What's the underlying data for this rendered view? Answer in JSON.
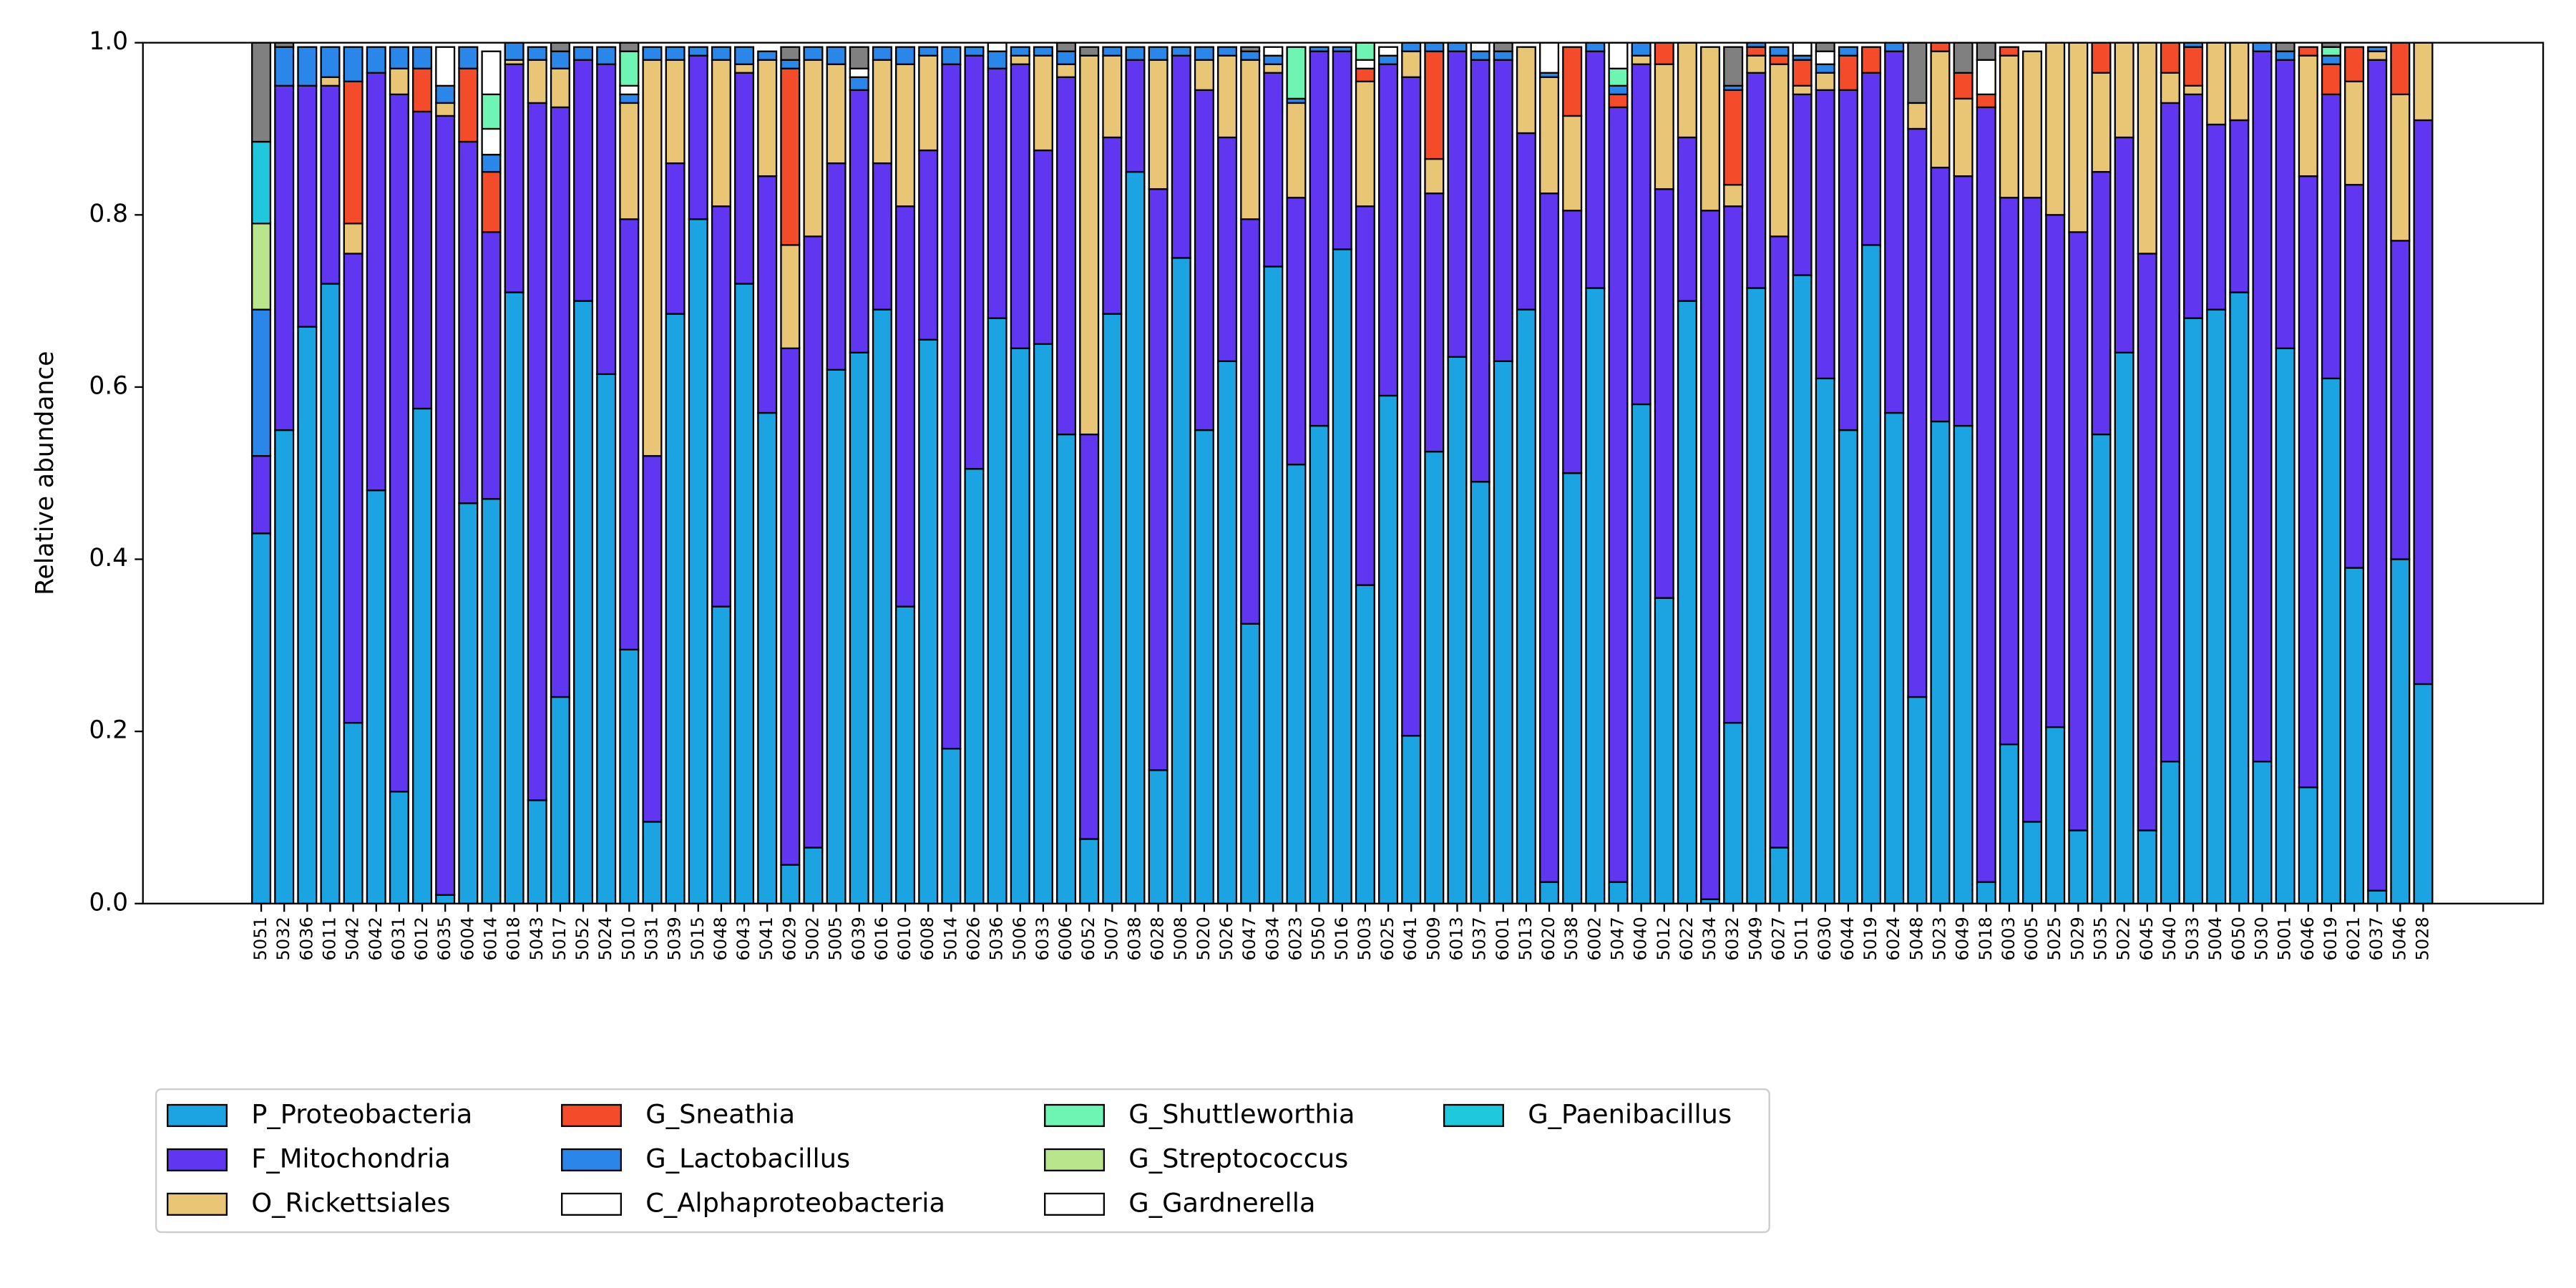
{
  "chart_data": {
    "type": "bar",
    "stacked": true,
    "grid": false,
    "legend": "lower left",
    "ylabel": "Relative abundance",
    "ylim": [
      0,
      1
    ],
    "yticks": [
      {
        "value": 0,
        "label": "0.0"
      },
      0.2,
      0.4,
      0.6,
      0.8,
      {
        "value": 1,
        "label": "1.0"
      }
    ],
    "categories": [
      "5051",
      "5032",
      "6036",
      "6011",
      "5042",
      "6042",
      "6031",
      "6012",
      "6035",
      "6004",
      "6014",
      "6018",
      "5043",
      "5017",
      "5052",
      "5024",
      "5010",
      "5031",
      "5039",
      "5015",
      "6048",
      "6043",
      "5041",
      "6029",
      "5002",
      "5005",
      "6039",
      "6016",
      "6010",
      "6008",
      "5014",
      "6026",
      "5036",
      "5006",
      "6033",
      "6006",
      "6052",
      "5007",
      "6038",
      "6028",
      "5008",
      "5020",
      "5026",
      "6047",
      "6034",
      "6023",
      "5050",
      "5016",
      "5003",
      "6025",
      "6041",
      "5009",
      "6013",
      "5037",
      "6001",
      "5013",
      "6020",
      "5038",
      "6002",
      "5047",
      "6040",
      "5012",
      "6022",
      "5034",
      "6032",
      "5049",
      "6027",
      "5011",
      "6030",
      "6044",
      "5019",
      "6024",
      "5048",
      "5023",
      "6049",
      "5018",
      "6003",
      "6005",
      "5025",
      "5029",
      "5035",
      "5022",
      "6045",
      "5040",
      "5033",
      "5004",
      "6050",
      "5030",
      "5001",
      "6046",
      "6019",
      "6021",
      "6037",
      "5046",
      "5028"
    ],
    "series": [
      {
        "name": "P_Proteobacteria",
        "color": "#1ba3e2",
        "values": [
          0.43,
          0.55,
          0.67,
          0.72,
          0.21,
          0.48,
          0.13,
          0.575,
          0.01,
          0.465,
          0.47,
          0.71,
          0.12,
          0.24,
          0.7,
          0.615,
          0.295,
          0.095,
          0.685,
          0.795,
          0.345,
          0.72,
          0.57,
          0.045,
          0.065,
          0.62,
          0.64,
          0.69,
          0.345,
          0.655,
          0.18,
          0.505,
          0.68,
          0.645,
          0.65,
          0.545,
          0.075,
          0.685,
          0.85,
          0.155,
          0.75,
          0.55,
          0.63,
          0.325,
          0.74,
          0.51,
          0.555,
          0.76,
          0.37,
          0.59,
          0.195,
          0.525,
          0.635,
          0.49,
          0.63,
          0.69,
          0.025,
          0.5,
          0.715,
          0.025,
          0.58,
          0.355,
          0.7,
          0.005,
          0.21,
          0.715,
          0.065,
          0.73,
          0.61,
          0.55,
          0.765,
          0.57,
          0.24,
          0.56,
          0.555,
          0.025,
          0.185,
          0.095,
          0.205,
          0.085,
          0.545,
          0.64,
          0.085,
          0.165,
          0.68,
          0.69,
          0.71,
          0.165,
          0.645,
          0.135,
          0.61,
          0.39,
          0.015,
          0.4,
          0.255
        ]
      },
      {
        "name": "F_Mitochondria",
        "color": "#6136f0",
        "values": [
          0.09,
          0.4,
          0.28,
          0.23,
          0.545,
          0.485,
          0.81,
          0.345,
          0.905,
          0.42,
          0.31,
          0.265,
          0.81,
          0.685,
          0.28,
          0.36,
          0.5,
          0.425,
          0.175,
          0.19,
          0.465,
          0.245,
          0.275,
          0.6,
          0.71,
          0.24,
          0.305,
          0.17,
          0.465,
          0.22,
          0.795,
          0.48,
          0.29,
          0.33,
          0.225,
          0.415,
          0.47,
          0.205,
          0.13,
          0.675,
          0.235,
          0.395,
          0.26,
          0.47,
          0.225,
          0.31,
          0.435,
          0.23,
          0.44,
          0.385,
          0.765,
          0.3,
          0.355,
          0.49,
          0.35,
          0.205,
          0.8,
          0.305,
          0.275,
          0.9,
          0.395,
          0.475,
          0.19,
          0.8,
          0.6,
          0.25,
          0.71,
          0.21,
          0.335,
          0.395,
          0.2,
          0.42,
          0.66,
          0.295,
          0.29,
          0.9,
          0.635,
          0.725,
          0.595,
          0.695,
          0.305,
          0.25,
          0.67,
          0.765,
          0.26,
          0.215,
          0.2,
          0.825,
          0.335,
          0.71,
          0.33,
          0.445,
          0.965,
          0.37,
          0.655
        ]
      },
      {
        "name": "O_Rickettsiales",
        "color": "#e9c675",
        "values": [
          0,
          0,
          0,
          0.01,
          0.035,
          0,
          0.03,
          0,
          0.015,
          0,
          0,
          0.005,
          0.05,
          0.045,
          0,
          0,
          0.135,
          0.46,
          0.12,
          0,
          0.17,
          0.01,
          0.135,
          0.12,
          0.205,
          0.115,
          0,
          0.12,
          0.165,
          0.11,
          0,
          0,
          0,
          0.01,
          0.11,
          0.015,
          0.44,
          0.095,
          0,
          0.15,
          0,
          0.035,
          0.095,
          0.185,
          0.01,
          0.11,
          0,
          0,
          0.145,
          0,
          0.03,
          0.04,
          0,
          0,
          0,
          0.1,
          0.135,
          0.11,
          0,
          0,
          0.01,
          0.145,
          0.11,
          0.19,
          0.025,
          0.02,
          0.2,
          0.01,
          0.02,
          0,
          0,
          0,
          0.03,
          0.135,
          0.09,
          0,
          0.165,
          0.17,
          0.2,
          0.22,
          0.115,
          0.11,
          0.245,
          0.035,
          0.01,
          0.095,
          0.09,
          0,
          0,
          0.14,
          0,
          0.12,
          0.01,
          0.17,
          0.09
        ]
      },
      {
        "name": "G_Sneathia",
        "color": "#f44b2b",
        "values": [
          0,
          0,
          0,
          0,
          0.165,
          0,
          0,
          0.05,
          0,
          0.085,
          0.07,
          0,
          0,
          0,
          0,
          0,
          0,
          0,
          0,
          0,
          0,
          0,
          0,
          0.205,
          0,
          0,
          0,
          0,
          0,
          0,
          0,
          0,
          0,
          0,
          0,
          0,
          0,
          0,
          0,
          0,
          0,
          0,
          0,
          0,
          0,
          0,
          0,
          0,
          0.015,
          0,
          0,
          0.125,
          0,
          0,
          0,
          0,
          0,
          0.08,
          0,
          0.015,
          0,
          0.025,
          0,
          0,
          0.11,
          0.01,
          0.01,
          0.03,
          0,
          0.04,
          0.03,
          0,
          0,
          0.01,
          0.03,
          0.015,
          0.01,
          0,
          0,
          0,
          0.035,
          0,
          0,
          0.035,
          0.045,
          0,
          0,
          0,
          0,
          0.01,
          0.035,
          0.04,
          0,
          0.06,
          0
        ]
      },
      {
        "name": "G_Lactobacillus",
        "color": "#2b86e9",
        "values": [
          0.17,
          0.045,
          0.045,
          0.035,
          0.04,
          0.03,
          0.025,
          0.025,
          0.02,
          0.025,
          0.02,
          0.02,
          0.015,
          0.02,
          0.015,
          0.02,
          0.01,
          0.015,
          0.015,
          0.01,
          0.015,
          0.02,
          0.01,
          0.01,
          0.015,
          0.02,
          0.015,
          0.015,
          0.02,
          0.01,
          0.02,
          0.01,
          0.02,
          0.01,
          0.01,
          0.015,
          0,
          0.01,
          0.015,
          0.015,
          0.01,
          0.015,
          0.01,
          0.01,
          0.01,
          0.005,
          0.005,
          0.005,
          0,
          0.01,
          0.01,
          0.01,
          0.01,
          0.01,
          0.01,
          0,
          0.005,
          0,
          0.01,
          0.01,
          0.015,
          0,
          0,
          0,
          0.005,
          0.005,
          0.01,
          0.005,
          0.01,
          0.01,
          0,
          0.01,
          0,
          0,
          0,
          0,
          0,
          0,
          0,
          0,
          0,
          0,
          0,
          0,
          0.005,
          0,
          0,
          0.01,
          0.01,
          0,
          0.01,
          0,
          0.005,
          0,
          0
        ]
      },
      {
        "name": "C_Alphaproteobacteria",
        "color": "#ffffff",
        "values": [
          0,
          0,
          0,
          0,
          0,
          0,
          0,
          0,
          0,
          0,
          0.03,
          0,
          0,
          0,
          0,
          0,
          0.01,
          0,
          0,
          0,
          0,
          0,
          0,
          0,
          0,
          0,
          0.01,
          0,
          0,
          0,
          0,
          0,
          0.01,
          0,
          0,
          0,
          0,
          0,
          0,
          0,
          0,
          0,
          0,
          0,
          0.01,
          0,
          0,
          0,
          0.01,
          0.01,
          0,
          0,
          0,
          0,
          0,
          0,
          0,
          0,
          0,
          0,
          0,
          0,
          0,
          0,
          0,
          0,
          0,
          0.015,
          0,
          0,
          0,
          0,
          0,
          0,
          0,
          0,
          0,
          0,
          0,
          0,
          0,
          0,
          0,
          0,
          0,
          0,
          0,
          0,
          0,
          0,
          0,
          0,
          0,
          0,
          0
        ]
      },
      {
        "name": "G_Shuttleworthia",
        "color": "#6ef5b4",
        "values": [
          0,
          0,
          0,
          0,
          0,
          0,
          0,
          0,
          0,
          0,
          0.04,
          0,
          0,
          0,
          0,
          0,
          0.04,
          0,
          0,
          0,
          0,
          0,
          0,
          0,
          0,
          0,
          0,
          0,
          0,
          0,
          0,
          0,
          0,
          0,
          0,
          0,
          0,
          0,
          0,
          0,
          0,
          0,
          0,
          0,
          0,
          0.06,
          0,
          0,
          0.02,
          0,
          0,
          0,
          0,
          0,
          0,
          0,
          0,
          0,
          0,
          0.02,
          0,
          0,
          0,
          0,
          0,
          0,
          0,
          0,
          0,
          0,
          0,
          0,
          0,
          0,
          0,
          0,
          0,
          0,
          0,
          0,
          0,
          0,
          0,
          0,
          0,
          0,
          0,
          0,
          0,
          0,
          0.01,
          0,
          0,
          0,
          0
        ]
      },
      {
        "name": "G_Streptococcus",
        "color": "#b9e68c",
        "values": [
          0.1,
          0,
          0,
          0,
          0,
          0,
          0,
          0,
          0,
          0,
          0,
          0,
          0,
          0,
          0,
          0,
          0,
          0,
          0,
          0,
          0,
          0,
          0,
          0,
          0,
          0,
          0,
          0,
          0,
          0,
          0,
          0,
          0,
          0,
          0,
          0,
          0,
          0,
          0,
          0,
          0,
          0,
          0,
          0,
          0,
          0,
          0,
          0,
          0,
          0,
          0,
          0,
          0,
          0,
          0,
          0,
          0,
          0,
          0,
          0,
          0,
          0,
          0,
          0,
          0,
          0,
          0,
          0,
          0,
          0,
          0,
          0,
          0,
          0,
          0,
          0,
          0,
          0,
          0,
          0,
          0,
          0,
          0,
          0,
          0,
          0,
          0,
          0,
          0,
          0,
          0,
          0,
          0,
          0,
          0
        ]
      },
      {
        "name": "G_Gardnerella",
        "color": "#ffffff",
        "values": [
          0,
          0,
          0,
          0,
          0,
          0,
          0,
          0,
          0.045,
          0,
          0.05,
          0,
          0,
          0,
          0,
          0,
          0,
          0,
          0,
          0,
          0,
          0,
          0,
          0,
          0,
          0,
          0,
          0,
          0,
          0,
          0,
          0,
          0,
          0,
          0,
          0,
          0,
          0,
          0,
          0,
          0,
          0,
          0,
          0,
          0,
          0,
          0,
          0,
          0,
          0,
          0,
          0,
          0,
          0.01,
          0,
          0,
          0.035,
          0,
          0,
          0.03,
          0,
          0,
          0,
          0,
          0,
          0,
          0,
          0,
          0.015,
          0,
          0,
          0,
          0,
          0,
          0,
          0.04,
          0,
          0,
          0,
          0,
          0,
          0,
          0,
          0,
          0,
          0,
          0,
          0,
          0,
          0,
          0,
          0,
          0,
          0,
          0
        ]
      },
      {
        "name": "G_Paenibacillus",
        "color": "#1fc8dd",
        "values": [
          0.095,
          0,
          0,
          0,
          0,
          0,
          0,
          0,
          0,
          0,
          0,
          0,
          0,
          0,
          0,
          0,
          0,
          0,
          0,
          0,
          0,
          0,
          0,
          0,
          0,
          0,
          0,
          0,
          0,
          0,
          0,
          0,
          0,
          0,
          0,
          0,
          0,
          0,
          0,
          0,
          0,
          0,
          0,
          0,
          0,
          0,
          0,
          0,
          0,
          0,
          0,
          0,
          0,
          0,
          0,
          0,
          0,
          0,
          0,
          0,
          0,
          0,
          0,
          0,
          0,
          0,
          0,
          0,
          0,
          0,
          0,
          0,
          0,
          0,
          0,
          0,
          0,
          0,
          0,
          0,
          0,
          0,
          0,
          0,
          0,
          0,
          0,
          0,
          0,
          0,
          0,
          0,
          0,
          0,
          0
        ]
      },
      {
        "color": "#808080",
        "values": [
          0.115,
          0.005,
          0,
          0,
          0,
          0,
          0,
          0,
          0,
          0,
          0,
          0,
          0,
          0.01,
          0,
          0,
          0.01,
          0,
          0,
          0,
          0,
          0,
          0,
          0.015,
          0,
          0,
          0.025,
          0,
          0,
          0,
          0,
          0,
          0,
          0,
          0,
          0.01,
          0.01,
          0,
          0,
          0,
          0,
          0,
          0,
          0.005,
          0,
          0,
          0,
          0,
          0,
          0,
          0,
          0,
          0,
          0,
          0.01,
          0,
          0,
          0,
          0,
          0,
          0,
          0,
          0,
          0,
          0.045,
          0,
          0,
          0,
          0.01,
          0,
          0,
          0,
          0.07,
          0,
          0.035,
          0.02,
          0,
          0,
          0,
          0,
          0,
          0,
          0,
          0,
          0,
          0,
          0,
          0,
          0.01,
          0,
          0.005,
          0,
          0,
          0,
          0
        ]
      }
    ]
  }
}
